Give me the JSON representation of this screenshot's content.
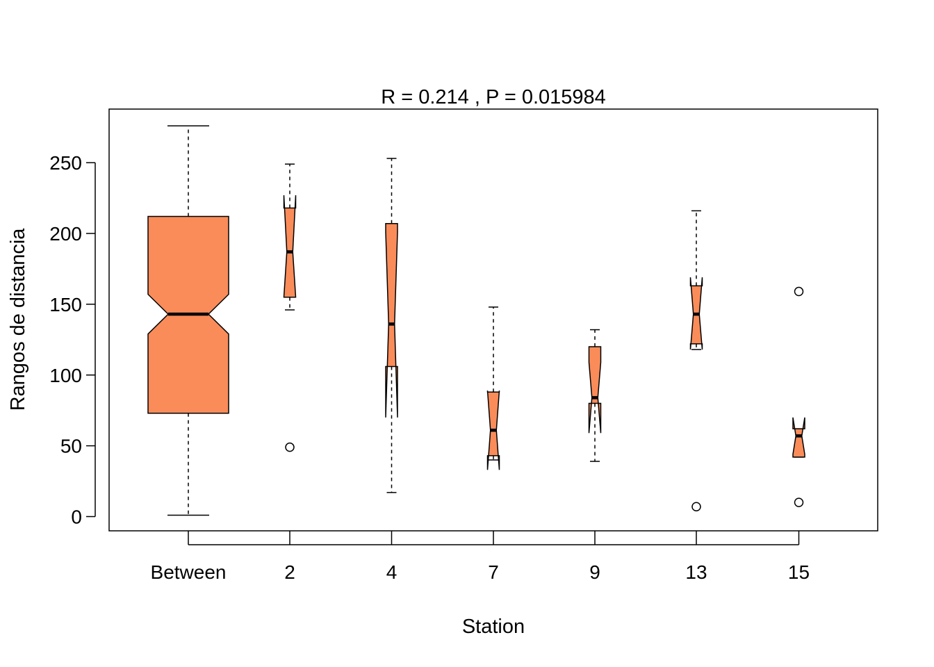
{
  "chart_data": {
    "type": "boxplot",
    "title": "R =  0.214 ,  P =  0.015984",
    "xlabel": "Station",
    "ylabel": "Rangos de distancia",
    "categories": [
      "Between",
      "2",
      "4",
      "7",
      "9",
      "13",
      "15"
    ],
    "yticks": [
      "0",
      "50",
      "100",
      "150",
      "200",
      "250"
    ],
    "ylim": [
      -10,
      287
    ],
    "notch": true,
    "fill_color": "#FA8C5A",
    "boxes": [
      {
        "lower_whisker": 1,
        "q1": 73,
        "median": 143,
        "q3": 212,
        "upper_whisker": 276,
        "notch_low": 129,
        "notch_high": 157,
        "outliers": []
      },
      {
        "lower_whisker": 146,
        "q1": 155,
        "median": 187,
        "q3": 218,
        "upper_whisker": 249,
        "notch_low": 155,
        "notch_high": 227,
        "outliers": [
          49
        ]
      },
      {
        "lower_whisker": 17,
        "q1": 106,
        "median": 136,
        "q3": 207,
        "upper_whisker": 253,
        "notch_low": 70,
        "notch_high": 201,
        "outliers": []
      },
      {
        "lower_whisker": 40,
        "q1": 43,
        "median": 61,
        "q3": 88,
        "upper_whisker": 148,
        "notch_low": 33,
        "notch_high": 89,
        "outliers": []
      },
      {
        "lower_whisker": 39,
        "q1": 80,
        "median": 84,
        "q3": 120,
        "upper_whisker": 132,
        "notch_low": 59,
        "notch_high": 109,
        "outliers": []
      },
      {
        "lower_whisker": 118,
        "q1": 122,
        "median": 143,
        "q3": 163,
        "upper_whisker": 216,
        "notch_low": 118,
        "notch_high": 169,
        "outliers": [
          7
        ]
      },
      {
        "lower_whisker": 42,
        "q1": 42,
        "median": 57,
        "q3": 62,
        "upper_whisker": 62,
        "notch_low": 44,
        "notch_high": 70,
        "outliers": [
          10,
          159
        ]
      }
    ]
  }
}
